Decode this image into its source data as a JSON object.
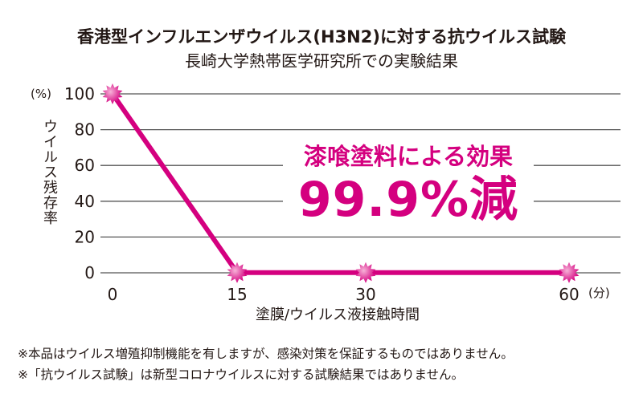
{
  "chart_data": {
    "type": "line",
    "title": "香港型インフルエンザウイルス(H3N2)に対する抗ウイルス試験",
    "subtitle": "長崎大学熱帯医学研究所での実験結果",
    "ylabel_unit": "(%)",
    "ylabel": "ウイルス残存率",
    "xlabel": "塗膜/ウイルス液接触時間",
    "x_unit": "(分)",
    "ylim": [
      0,
      100
    ],
    "y_ticks": [
      "0",
      "20",
      "40",
      "60",
      "80",
      "100"
    ],
    "x_ticks": [
      "0",
      "15",
      "30",
      "60"
    ],
    "grid": true,
    "series": [
      {
        "name": "ウイルス残存率",
        "x": [
          0,
          15,
          30,
          60
        ],
        "values": [
          100,
          0.1,
          0.1,
          0.1
        ],
        "color": "#d4007f"
      }
    ],
    "annotation": {
      "line1": "漆喰塗料による効果",
      "line2": "99.9%減"
    }
  },
  "notes": [
    "※本品はウイルス増殖抑制機能を有しますが、感染対策を保証するものではありません。",
    "※「抗ウイルス試験」は新型コロナウイルスに対する試験結果ではありません。"
  ]
}
